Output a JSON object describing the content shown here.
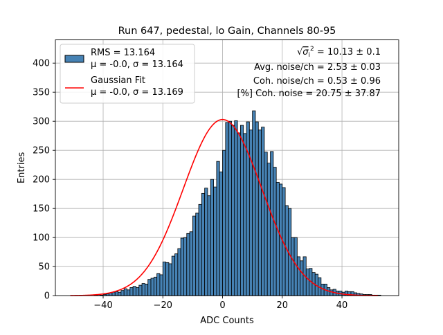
{
  "chart_data": {
    "type": "bar",
    "title": "Run 647, pedestal, lo Gain, Channels 80-95",
    "xlabel": "ADC Counts",
    "ylabel": "Entries",
    "xlim": [
      -56,
      59
    ],
    "ylim": [
      0,
      440
    ],
    "xticks": [
      -40,
      -20,
      0,
      20,
      40
    ],
    "yticks": [
      0,
      50,
      100,
      150,
      200,
      250,
      300,
      350,
      400
    ],
    "grid": true,
    "legend_position": "top-left",
    "bin_start": -51,
    "bin_width": 1,
    "series": [
      {
        "name": "RMS = 13.164\nμ = -0.0, σ = 13.164",
        "kind": "histogram",
        "color": "#4682b4",
        "values": [
          0,
          0,
          0,
          0,
          0,
          0,
          0,
          0,
          1,
          2,
          1,
          2,
          3,
          5,
          6,
          7,
          6,
          9,
          12,
          10,
          14,
          16,
          14,
          18,
          21,
          20,
          28,
          30,
          32,
          38,
          36,
          58,
          57,
          55,
          68,
          72,
          81,
          99,
          100,
          107,
          110,
          137,
          142,
          157,
          176,
          185,
          172,
          200,
          187,
          231,
          213,
          250,
          298,
          300,
          293,
          301,
          280,
          293,
          279,
          299,
          285,
          318,
          299,
          285,
          290,
          247,
          228,
          248,
          221,
          195,
          192,
          186,
          155,
          150,
          100,
          100,
          67,
          60,
          67,
          46,
          47,
          40,
          37,
          31,
          20,
          20,
          14,
          10,
          11,
          8,
          8,
          6,
          8,
          7,
          7,
          5,
          4,
          3,
          2,
          2,
          2,
          1,
          1,
          1
        ]
      },
      {
        "name": "Gaussian Fit\nμ = -0.0, σ = 13.169",
        "kind": "line",
        "color": "#ff0000",
        "mu": 0.0,
        "sigma": 13.169,
        "amplitude": 303,
        "x_range": [
          -51,
          52
        ]
      }
    ],
    "annotations": [
      {
        "prefix": "√",
        "sigma_label": "σ",
        "sigma_sub": "i",
        "sigma_sup": "2",
        "text": " = 10.13 ± 0.1"
      },
      {
        "text": "Avg. noise/ch = 2.53 ± 0.03"
      },
      {
        "text": "Coh. noise/ch = 0.53 ± 0.96"
      },
      {
        "text": "[%] Coh. noise = 20.75 ± 37.87"
      }
    ]
  }
}
